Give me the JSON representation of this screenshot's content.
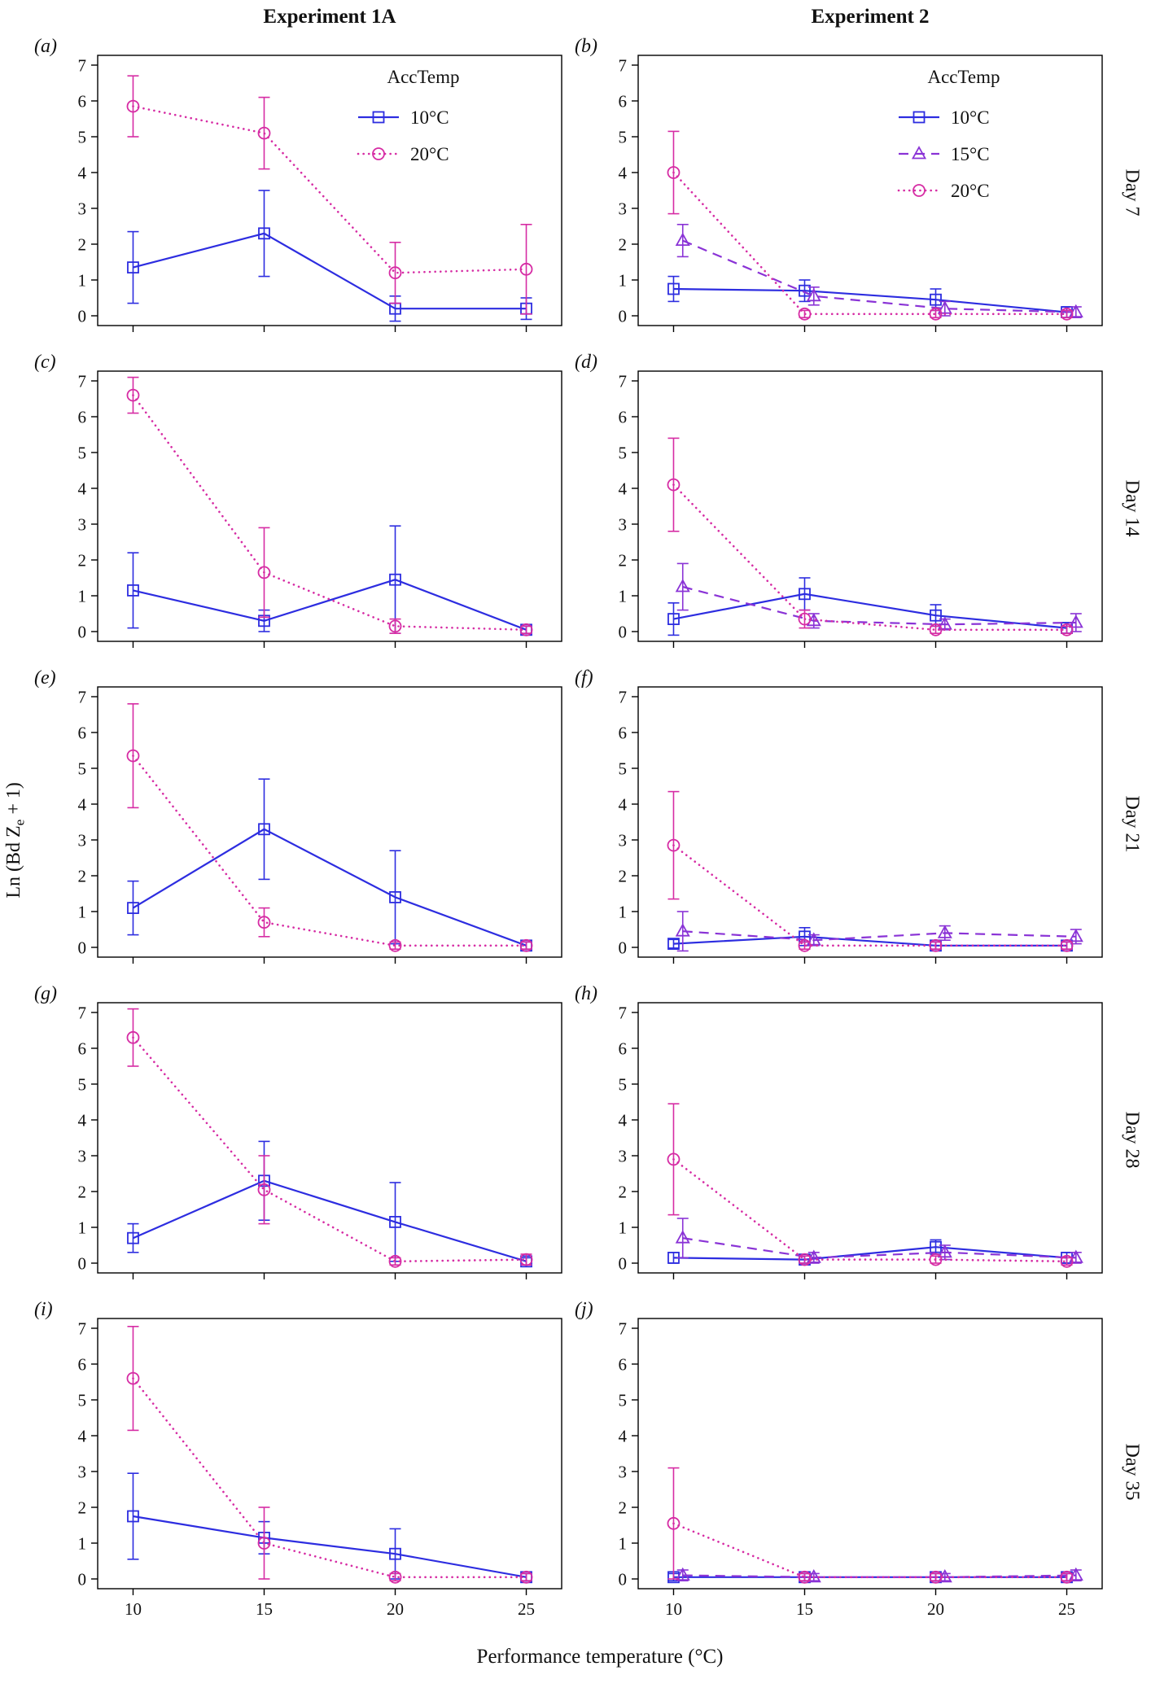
{
  "figure": {
    "column_titles": [
      "Experiment 1A",
      "Experiment 2"
    ],
    "row_labels": [
      "Day 7",
      "Day 14",
      "Day 21",
      "Day 28",
      "Day 35"
    ],
    "x_axis_label": "Performance temperature (°C)",
    "y_axis_label": {
      "pre": "Ln (Bd Z",
      "sub": "e",
      "post": " + 1)"
    },
    "legend_title": "AccTemp"
  },
  "chart_data": {
    "type": "line",
    "x": [
      10,
      15,
      20,
      25
    ],
    "x_ticks": [
      "10",
      "15",
      "20",
      "25"
    ],
    "y_ticks": [
      "0",
      "1",
      "2",
      "3",
      "4",
      "5",
      "6",
      "7"
    ],
    "ylim": [
      0,
      7
    ],
    "grid": false,
    "legend_position": "top-right",
    "styles": {
      "10°C": {
        "color": "#2d2de0",
        "marker": "square",
        "line": "solid",
        "dx": 0
      },
      "15°C": {
        "color": "#8a33d6",
        "marker": "triangle",
        "line": "dashed",
        "dx": 0.35
      },
      "20°C": {
        "color": "#d62ca4",
        "marker": "circle",
        "line": "dotted",
        "dx": 0
      }
    },
    "panels": [
      {
        "id": "a",
        "label": "(a)",
        "experiment": "Experiment 1A",
        "day": "Day 7",
        "legend": [
          "10°C",
          "20°C"
        ],
        "x_labels": false,
        "series": [
          {
            "name": "10°C",
            "values": [
              1.35,
              2.3,
              0.2,
              0.2
            ],
            "err": [
              1.0,
              1.2,
              0.35,
              0.3
            ]
          },
          {
            "name": "20°C",
            "values": [
              5.85,
              5.1,
              1.2,
              1.3
            ],
            "err": [
              0.85,
              1.0,
              0.85,
              1.25
            ]
          }
        ]
      },
      {
        "id": "b",
        "label": "(b)",
        "experiment": "Experiment 2",
        "day": "Day 7",
        "legend": [
          "10°C",
          "15°C",
          "20°C"
        ],
        "x_labels": false,
        "series": [
          {
            "name": "10°C",
            "values": [
              0.75,
              0.7,
              0.45,
              0.1
            ],
            "err": [
              0.35,
              0.3,
              0.3,
              0.15
            ]
          },
          {
            "name": "15°C",
            "values": [
              2.1,
              0.55,
              0.2,
              0.1
            ],
            "err": [
              0.45,
              0.25,
              0.2,
              0.15
            ]
          },
          {
            "name": "20°C",
            "values": [
              4.0,
              0.05,
              0.05,
              0.05
            ],
            "err": [
              1.15,
              0.1,
              0.1,
              0.1
            ]
          }
        ]
      },
      {
        "id": "c",
        "label": "(c)",
        "experiment": "Experiment 1A",
        "day": "Day 14",
        "legend": null,
        "x_labels": false,
        "series": [
          {
            "name": "10°C",
            "values": [
              1.15,
              0.3,
              1.45,
              0.05
            ],
            "err": [
              1.05,
              0.3,
              1.5,
              0.1
            ]
          },
          {
            "name": "20°C",
            "values": [
              6.6,
              1.65,
              0.15,
              0.05
            ],
            "err": [
              0.5,
              1.25,
              0.2,
              0.1
            ]
          }
        ]
      },
      {
        "id": "d",
        "label": "(d)",
        "experiment": "Experiment 2",
        "day": "Day 14",
        "legend": null,
        "x_labels": false,
        "series": [
          {
            "name": "10°C",
            "values": [
              0.35,
              1.05,
              0.45,
              0.1
            ],
            "err": [
              0.45,
              0.45,
              0.3,
              0.15
            ]
          },
          {
            "name": "15°C",
            "values": [
              1.25,
              0.3,
              0.2,
              0.25
            ],
            "err": [
              0.65,
              0.2,
              0.15,
              0.25
            ]
          },
          {
            "name": "20°C",
            "values": [
              4.1,
              0.35,
              0.05,
              0.05
            ],
            "err": [
              1.3,
              0.25,
              0.1,
              0.1
            ]
          }
        ]
      },
      {
        "id": "e",
        "label": "(e)",
        "experiment": "Experiment 1A",
        "day": "Day 21",
        "legend": null,
        "x_labels": false,
        "series": [
          {
            "name": "10°C",
            "values": [
              1.1,
              3.3,
              1.4,
              0.05
            ],
            "err": [
              0.75,
              1.4,
              1.3,
              0.1
            ]
          },
          {
            "name": "20°C",
            "values": [
              5.35,
              0.7,
              0.05,
              0.05
            ],
            "err": [
              1.45,
              0.4,
              0.1,
              0.1
            ]
          }
        ]
      },
      {
        "id": "f",
        "label": "(f)",
        "experiment": "Experiment 2",
        "day": "Day 21",
        "legend": null,
        "x_labels": false,
        "series": [
          {
            "name": "10°C",
            "values": [
              0.1,
              0.3,
              0.05,
              0.05
            ],
            "err": [
              0.12,
              0.25,
              0.1,
              0.1
            ]
          },
          {
            "name": "15°C",
            "values": [
              0.45,
              0.2,
              0.4,
              0.3
            ],
            "err": [
              0.55,
              0.15,
              0.2,
              0.2
            ]
          },
          {
            "name": "20°C",
            "values": [
              2.85,
              0.05,
              0.05,
              0.05
            ],
            "err": [
              1.5,
              0.1,
              0.1,
              0.1
            ]
          }
        ]
      },
      {
        "id": "g",
        "label": "(g)",
        "experiment": "Experiment 1A",
        "day": "Day 28",
        "legend": null,
        "x_labels": false,
        "series": [
          {
            "name": "10°C",
            "values": [
              0.7,
              2.3,
              1.15,
              0.05
            ],
            "err": [
              0.4,
              1.1,
              1.1,
              0.1
            ]
          },
          {
            "name": "20°C",
            "values": [
              6.3,
              2.05,
              0.05,
              0.1
            ],
            "err": [
              0.8,
              0.95,
              0.1,
              0.15
            ]
          }
        ]
      },
      {
        "id": "h",
        "label": "(h)",
        "experiment": "Experiment 2",
        "day": "Day 28",
        "legend": null,
        "x_labels": false,
        "series": [
          {
            "name": "10°C",
            "values": [
              0.15,
              0.1,
              0.45,
              0.15
            ],
            "err": [
              0.15,
              0.1,
              0.2,
              0.15
            ]
          },
          {
            "name": "15°C",
            "values": [
              0.7,
              0.15,
              0.3,
              0.15
            ],
            "err": [
              0.55,
              0.15,
              0.2,
              0.15
            ]
          },
          {
            "name": "20°C",
            "values": [
              2.9,
              0.1,
              0.1,
              0.05
            ],
            "err": [
              1.55,
              0.1,
              0.1,
              0.1
            ]
          }
        ]
      },
      {
        "id": "i",
        "label": "(i)",
        "experiment": "Experiment 1A",
        "day": "Day 35",
        "legend": null,
        "x_labels": true,
        "series": [
          {
            "name": "10°C",
            "values": [
              1.75,
              1.15,
              0.7,
              0.05
            ],
            "err": [
              1.2,
              0.45,
              0.7,
              0.1
            ]
          },
          {
            "name": "20°C",
            "values": [
              5.6,
              1.0,
              0.05,
              0.05
            ],
            "err": [
              1.45,
              1.0,
              0.1,
              0.1
            ]
          }
        ]
      },
      {
        "id": "j",
        "label": "(j)",
        "experiment": "Experiment 2",
        "day": "Day 35",
        "legend": null,
        "x_labels": true,
        "series": [
          {
            "name": "10°C",
            "values": [
              0.05,
              0.05,
              0.05,
              0.05
            ],
            "err": [
              0.1,
              0.1,
              0.1,
              0.1
            ]
          },
          {
            "name": "15°C",
            "values": [
              0.1,
              0.05,
              0.05,
              0.1
            ],
            "err": [
              0.15,
              0.1,
              0.1,
              0.15
            ]
          },
          {
            "name": "20°C",
            "values": [
              1.55,
              0.05,
              0.05,
              0.05
            ],
            "err": [
              1.55,
              0.1,
              0.1,
              0.1
            ]
          }
        ]
      }
    ]
  }
}
